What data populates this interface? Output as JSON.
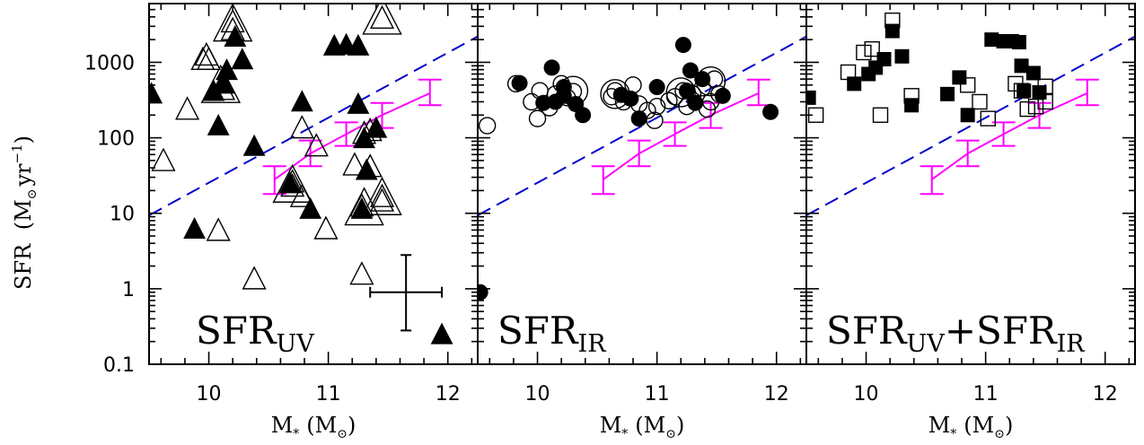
{
  "chart_data": {
    "type": "scatter",
    "y_axis": {
      "label_main": "SFR",
      "label_unit": "(M",
      "label_unit_sun": "⊙",
      "label_unit_rest": "yr",
      "label_unit_exp": "−1",
      "label_unit_close": ")",
      "scale": "log",
      "range": [
        0.1,
        6000
      ],
      "ticks": [
        "0.1",
        "1",
        "10",
        "100",
        "1000"
      ]
    },
    "x_axis": {
      "label_main": "M",
      "label_star": "*",
      "label_unit": "(M",
      "label_unit_sun": "⊙",
      "label_unit_close": ")",
      "range": [
        9.5,
        12.25
      ],
      "ticks": [
        "10",
        "11",
        "12"
      ]
    },
    "dashed_line": {
      "color": "#0000cc",
      "points": [
        [
          9.5,
          9.4
        ],
        [
          12.25,
          2200
        ]
      ]
    },
    "binned_relation": {
      "color": "#ff00ff",
      "points": [
        {
          "x": 10.55,
          "y": 28,
          "ylo": 18,
          "yhi": 42
        },
        {
          "x": 10.85,
          "y": 62,
          "ylo": 42,
          "yhi": 92
        },
        {
          "x": 11.15,
          "y": 112,
          "ylo": 78,
          "yhi": 160
        },
        {
          "x": 11.45,
          "y": 200,
          "ylo": 135,
          "yhi": 290
        },
        {
          "x": 11.85,
          "y": 390,
          "ylo": 270,
          "yhi": 590
        }
      ]
    },
    "panels": [
      {
        "label": "SFR",
        "label_sub": "UV",
        "label_plus": "",
        "label2": "",
        "label2_sub": "",
        "error_bar": {
          "x": 11.65,
          "y": 0.9,
          "xerr": 0.3,
          "ylo": 0.28,
          "yhi": 2.8
        },
        "open_triangles": [
          [
            9.62,
            48
          ],
          [
            9.82,
            230
          ],
          [
            9.95,
            1050
          ],
          [
            9.98,
            1200
          ],
          [
            10.0,
            1050
          ],
          [
            10.12,
            510
          ],
          [
            10.12,
            420
          ],
          [
            10.2,
            3300
          ],
          [
            10.2,
            2600
          ],
          [
            10.08,
            5.7
          ],
          [
            10.38,
            1.3
          ],
          [
            10.7,
            22
          ],
          [
            10.7,
            25
          ],
          [
            10.78,
            130
          ],
          [
            10.78,
            16
          ],
          [
            10.9,
            75
          ],
          [
            10.98,
            6
          ],
          [
            11.22,
            42
          ],
          [
            11.28,
            1.5
          ],
          [
            11.3,
            110
          ],
          [
            11.35,
            40
          ],
          [
            11.28,
            12
          ],
          [
            11.35,
            120
          ],
          [
            11.45,
            16
          ],
          [
            11.45,
            14
          ],
          [
            11.45,
            3700
          ]
        ],
        "open_triangles_big": [
          [
            10.2,
            3000
          ],
          [
            10.1,
            460
          ],
          [
            10.7,
            22
          ],
          [
            11.3,
            11
          ],
          [
            11.45,
            15
          ],
          [
            11.45,
            3700
          ]
        ],
        "filled_triangles": [
          [
            9.52,
            370
          ],
          [
            9.88,
            6
          ],
          [
            10.04,
            400
          ],
          [
            10.08,
            140
          ],
          [
            10.12,
            510
          ],
          [
            10.15,
            760
          ],
          [
            10.22,
            2100
          ],
          [
            10.28,
            1050
          ],
          [
            10.38,
            75
          ],
          [
            10.68,
            24
          ],
          [
            10.78,
            290
          ],
          [
            10.85,
            11
          ],
          [
            11.05,
            1600
          ],
          [
            11.15,
            1650
          ],
          [
            11.25,
            1600
          ],
          [
            11.25,
            270
          ],
          [
            11.28,
            11
          ],
          [
            11.3,
            95
          ],
          [
            11.32,
            36
          ],
          [
            11.4,
            130
          ],
          [
            11.95,
            0.24
          ]
        ],
        "filled_circles": []
      },
      {
        "label": "SFR",
        "label_sub": "IR",
        "label_plus": "",
        "label2": "",
        "label2_sub": "",
        "open_circles": [
          [
            9.58,
            145
          ],
          [
            9.82,
            520
          ],
          [
            9.95,
            300
          ],
          [
            10.0,
            180
          ],
          [
            10.02,
            420
          ],
          [
            10.1,
            250
          ],
          [
            10.15,
            380
          ],
          [
            10.2,
            520
          ],
          [
            10.25,
            340
          ],
          [
            10.3,
            410
          ],
          [
            10.62,
            350
          ],
          [
            10.65,
            420
          ],
          [
            10.72,
            300
          ],
          [
            10.8,
            500
          ],
          [
            10.85,
            280
          ],
          [
            10.92,
            230
          ],
          [
            10.98,
            170
          ],
          [
            11.0,
            260
          ],
          [
            11.1,
            310
          ],
          [
            11.15,
            350
          ],
          [
            11.22,
            420
          ],
          [
            11.25,
            260
          ],
          [
            11.3,
            380
          ],
          [
            11.38,
            460
          ],
          [
            11.42,
            240
          ],
          [
            11.45,
            300
          ],
          [
            11.48,
            600
          ],
          [
            11.52,
            380
          ]
        ],
        "open_circles_big": [
          [
            10.65,
            380
          ],
          [
            11.2,
            400
          ],
          [
            11.45,
            560
          ],
          [
            10.3,
            420
          ]
        ],
        "filled_circles": [
          [
            9.52,
            0.9
          ],
          [
            9.85,
            530
          ],
          [
            10.05,
            290
          ],
          [
            10.12,
            850
          ],
          [
            10.15,
            300
          ],
          [
            10.22,
            360
          ],
          [
            10.22,
            470
          ],
          [
            10.32,
            280
          ],
          [
            10.38,
            200
          ],
          [
            10.7,
            370
          ],
          [
            10.78,
            330
          ],
          [
            10.85,
            180
          ],
          [
            11.0,
            470
          ],
          [
            11.22,
            1700
          ],
          [
            11.25,
            420
          ],
          [
            11.28,
            780
          ],
          [
            11.32,
            290
          ],
          [
            11.38,
            600
          ],
          [
            11.55,
            360
          ],
          [
            11.95,
            220
          ]
        ]
      },
      {
        "label": "SFR",
        "label_sub": "UV",
        "label_plus": "+",
        "label2": "SFR",
        "label2_sub": "IR",
        "open_squares": [
          [
            9.58,
            200
          ],
          [
            9.85,
            740
          ],
          [
            9.98,
            1350
          ],
          [
            10.05,
            1500
          ],
          [
            10.12,
            200
          ],
          [
            10.22,
            3600
          ],
          [
            10.38,
            360
          ],
          [
            10.85,
            500
          ],
          [
            10.95,
            300
          ],
          [
            11.02,
            180
          ],
          [
            11.25,
            520
          ],
          [
            11.3,
            420
          ],
          [
            11.35,
            240
          ],
          [
            11.42,
            260
          ],
          [
            11.5,
            300
          ],
          [
            11.5,
            480
          ]
        ],
        "filled_squares": [
          [
            9.52,
            340
          ],
          [
            9.9,
            520
          ],
          [
            10.02,
            700
          ],
          [
            10.08,
            850
          ],
          [
            10.15,
            1100
          ],
          [
            10.22,
            2600
          ],
          [
            10.3,
            1200
          ],
          [
            10.38,
            270
          ],
          [
            10.68,
            380
          ],
          [
            10.78,
            630
          ],
          [
            10.85,
            200
          ],
          [
            11.05,
            2000
          ],
          [
            11.15,
            1900
          ],
          [
            11.22,
            1900
          ],
          [
            11.28,
            1850
          ],
          [
            11.3,
            900
          ],
          [
            11.32,
            420
          ],
          [
            11.4,
            720
          ],
          [
            11.45,
            400
          ]
        ]
      }
    ]
  }
}
